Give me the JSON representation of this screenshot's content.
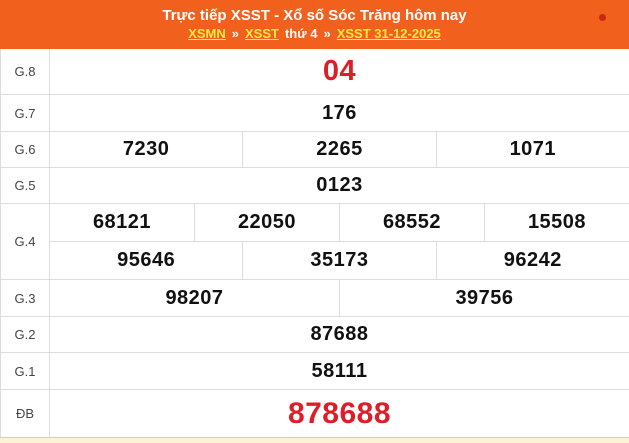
{
  "header": {
    "title": "Trực tiếp XSST - Xổ số Sóc Trăng hôm nay",
    "breadcrumb": [
      {
        "text": "XSMN",
        "link": true
      },
      {
        "text": "»",
        "sep": true
      },
      {
        "text": "XSST",
        "link": true
      },
      {
        "text": "thứ 4",
        "link": false
      },
      {
        "text": "»",
        "sep": true
      },
      {
        "text": "XSST 31-12-2025",
        "link": true
      }
    ],
    "live_indicator": "live-dot"
  },
  "results": {
    "rows": [
      {
        "key": "g8",
        "label": "G.8",
        "accent": true,
        "lines": [
          [
            "04"
          ]
        ]
      },
      {
        "key": "g7",
        "label": "G.7",
        "accent": false,
        "lines": [
          [
            "176"
          ]
        ]
      },
      {
        "key": "g6",
        "label": "G.6",
        "accent": false,
        "lines": [
          [
            "7230",
            "2265",
            "1071"
          ]
        ]
      },
      {
        "key": "g5",
        "label": "G.5",
        "accent": false,
        "lines": [
          [
            "0123"
          ]
        ]
      },
      {
        "key": "g4",
        "label": "G.4",
        "accent": false,
        "lines": [
          [
            "68121",
            "22050",
            "68552",
            "15508"
          ],
          [
            "95646",
            "35173",
            "96242"
          ]
        ]
      },
      {
        "key": "g3",
        "label": "G.3",
        "accent": false,
        "lines": [
          [
            "98207",
            "39756"
          ]
        ]
      },
      {
        "key": "g2",
        "label": "G.2",
        "accent": false,
        "lines": [
          [
            "87688"
          ]
        ]
      },
      {
        "key": "g1",
        "label": "G.1",
        "accent": false,
        "lines": [
          [
            "58111"
          ]
        ]
      },
      {
        "key": "db",
        "label": "ĐB",
        "accent": true,
        "lines": [
          [
            "878688"
          ]
        ]
      }
    ]
  },
  "colors": {
    "header_bg": "#f2601d",
    "link_yellow": "#ffe74a",
    "value_red": "#dd1e28",
    "grid_border": "#dcdcdc",
    "footer_bg": "#fbf4d3",
    "footer_border": "#ded094",
    "live_dot": "#c52a10"
  }
}
